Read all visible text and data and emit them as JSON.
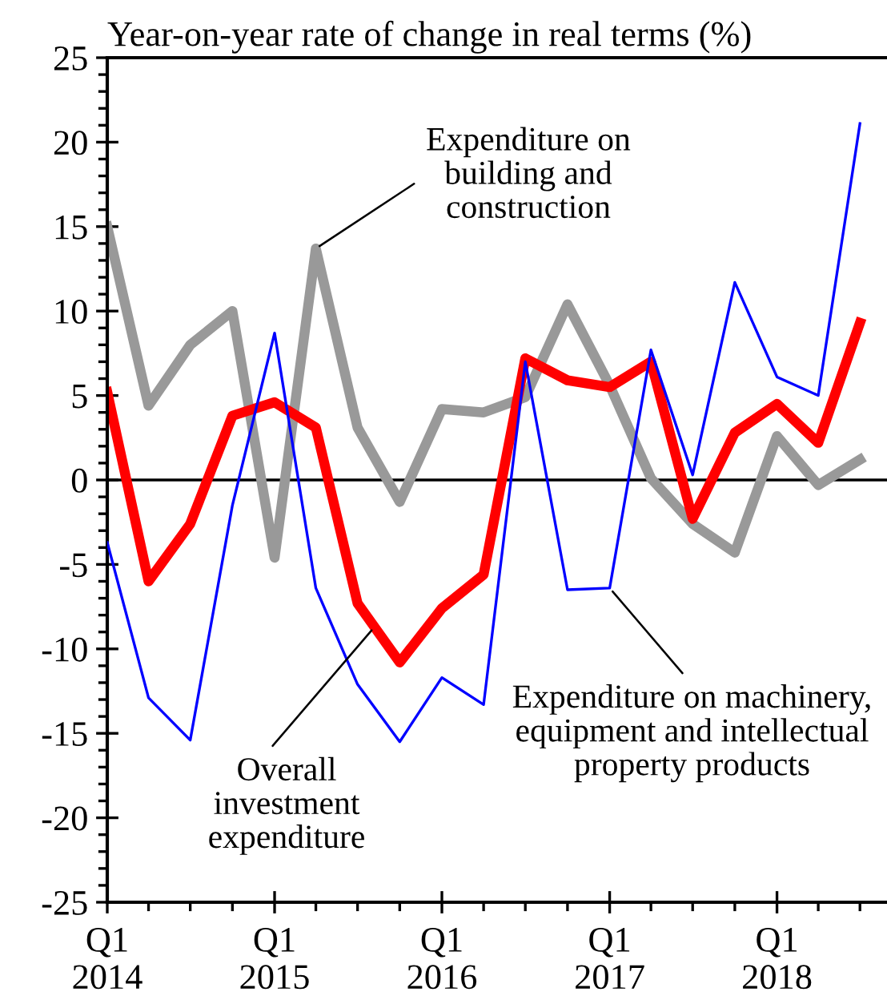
{
  "chart_data": {
    "type": "line",
    "title": "Year-on-year rate of change in real terms (%)",
    "x": [
      "2014-01",
      "2014-04",
      "2014-07",
      "2014-10",
      "2015-01",
      "2015-04",
      "2015-07",
      "2015-10",
      "2016-01",
      "2016-04",
      "2016-07",
      "2016-10",
      "2017-01",
      "2017-04",
      "2017-07",
      "2017-10",
      "2018-01",
      "2018-04",
      "2018-07"
    ],
    "series": [
      {
        "color": "#999999",
        "values": [
          15.0,
          4.4,
          8.0,
          10.0,
          -4.6,
          13.7,
          3.1,
          -1.3,
          4.2,
          4.0,
          4.9,
          10.4,
          5.6,
          0.1,
          -2.6,
          -4.3,
          2.6,
          -0.3,
          1.2
        ]
      },
      {
        "color": "#0000ff",
        "values": [
          -3.7,
          -12.9,
          -15.4,
          -1.5,
          8.7,
          -6.4,
          -12.1,
          -15.5,
          -11.7,
          -13.3,
          7.0,
          -6.5,
          -6.4,
          7.7,
          0.3,
          11.7,
          6.1,
          5.0,
          21.1
        ]
      },
      {
        "color": "#ff0000",
        "values": [
          5.2,
          -6.0,
          -2.6,
          3.8,
          4.6,
          3.1,
          -7.3,
          -10.8,
          -7.6,
          -5.6,
          7.2,
          5.9,
          5.5,
          7.0,
          -2.3,
          2.8,
          4.5,
          2.2,
          9.3
        ]
      }
    ],
    "xlim": [
      "2014-01",
      "2018-08-29"
    ],
    "ylim": [
      -25,
      25
    ],
    "xticks": [
      {
        "value": "2014-01",
        "label": "Q1\n2014"
      },
      {
        "value": "2014-04",
        "label": null
      },
      {
        "value": "2014-07",
        "label": null
      },
      {
        "value": "2014-10",
        "label": null
      },
      {
        "value": "2015-01",
        "label": "Q1\n2015"
      },
      {
        "value": "2015-04",
        "label": null
      },
      {
        "value": "2015-07",
        "label": null
      },
      {
        "value": "2015-10",
        "label": null
      },
      {
        "value": "2016-01",
        "label": "Q1\n2016"
      },
      {
        "value": "2016-04",
        "label": null
      },
      {
        "value": "2016-07",
        "label": null
      },
      {
        "value": "2016-10",
        "label": null
      },
      {
        "value": "2017-01",
        "label": "Q1\n2017"
      },
      {
        "value": "2017-04",
        "label": null
      },
      {
        "value": "2017-07",
        "label": null
      },
      {
        "value": "2017-10",
        "label": null
      },
      {
        "value": "2018-01",
        "label": "Q1\n2018"
      },
      {
        "value": "2018-04",
        "label": null
      },
      {
        "value": "2018-07",
        "label": null
      }
    ],
    "yticks": [
      -25,
      -20,
      -15,
      -10,
      -5,
      0,
      5,
      10,
      15,
      20,
      25
    ],
    "ref_lines": [
      {
        "axis": "y",
        "value": 0,
        "color": "#000000"
      }
    ],
    "annotations": [
      {
        "text": "Expenditure on\nbuilding and\nconstruction",
        "x": "2015-04",
        "y": 13.7
      },
      {
        "text": "Overall\ninvestment\nexpenditure",
        "x": "2015-08-07",
        "y": -8.7
      },
      {
        "text": "Expenditure on machinery,\nequipment and intellectual\nproperty products",
        "x": "2017-01",
        "y": -6.4
      }
    ],
    "grid": false,
    "marker": "none",
    "line_style": "solid"
  }
}
